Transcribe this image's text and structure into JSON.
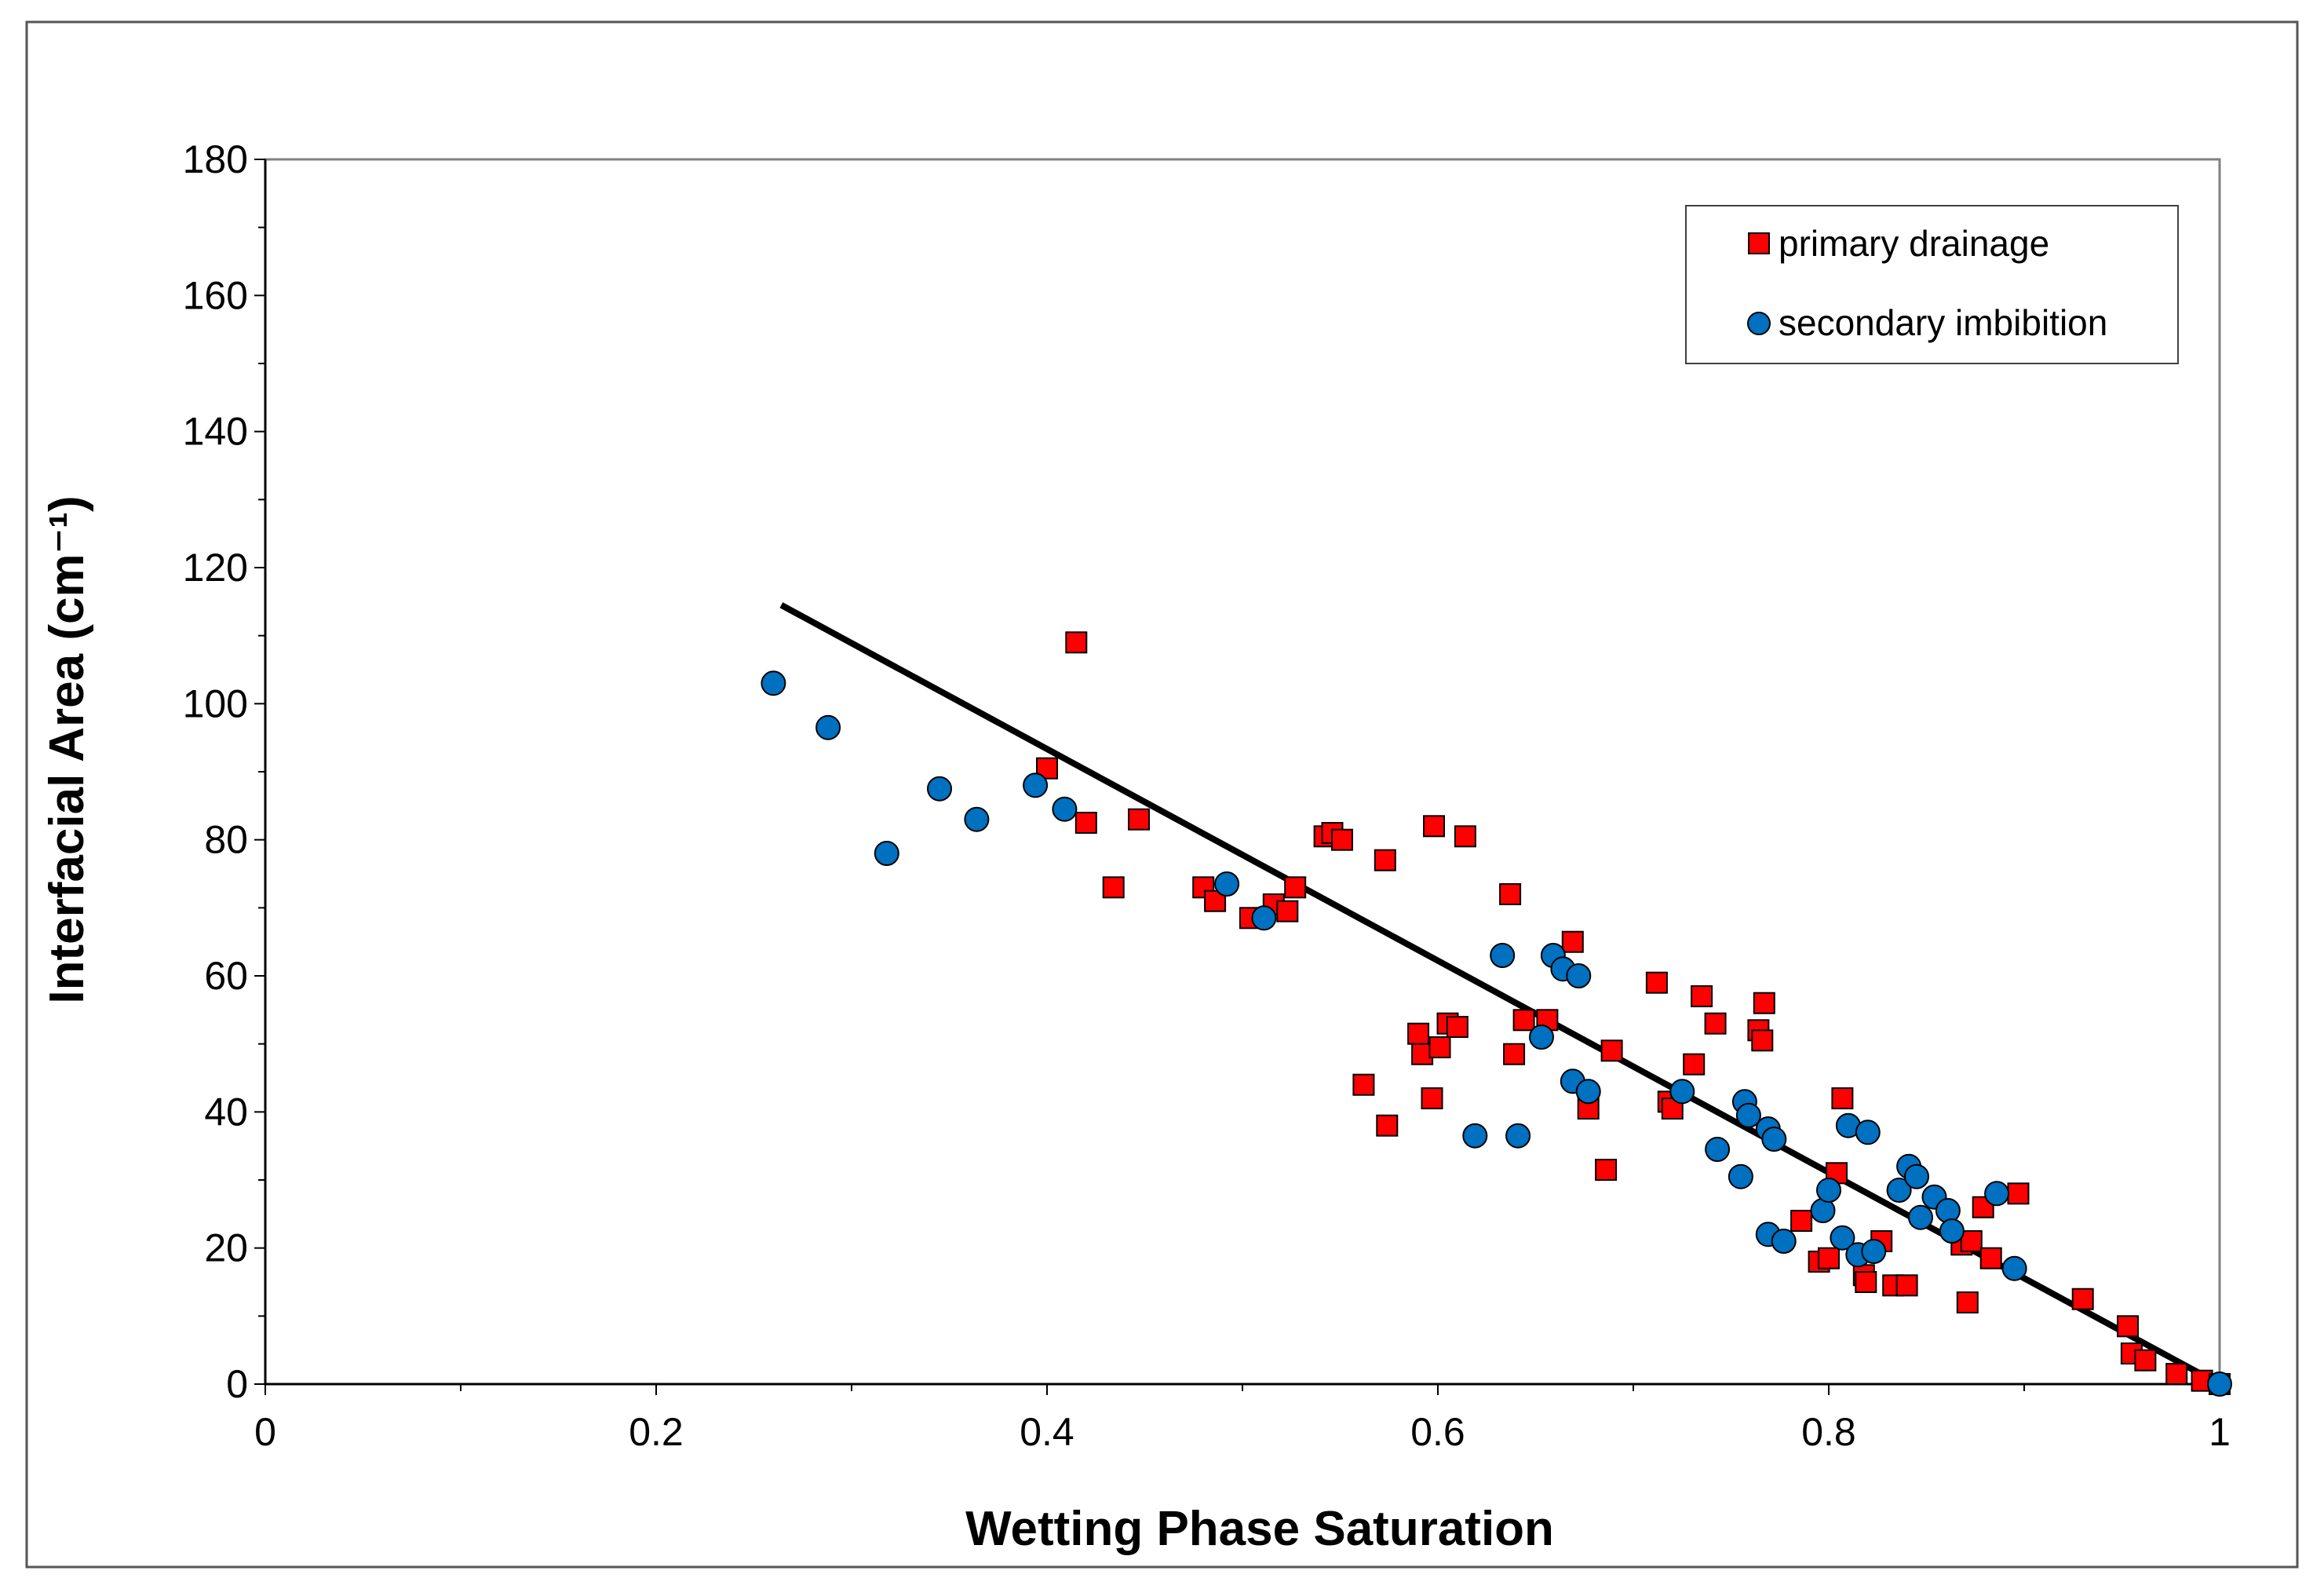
{
  "chart_data": {
    "type": "scatter",
    "xlabel": "Wetting Phase Saturation",
    "ylabel": "Interfacial Area (cm⁻¹)",
    "xlim": [
      0,
      1
    ],
    "ylim": [
      0,
      180
    ],
    "xticks": [
      "0",
      "0.2",
      "0.4",
      "0.6",
      "0.8",
      "1"
    ],
    "yticks": [
      "0",
      "20",
      "40",
      "60",
      "80",
      "100",
      "120",
      "140",
      "160",
      "180"
    ],
    "grid": false,
    "legend_position": "top-right",
    "series": [
      {
        "name": "primary drainage",
        "marker": "square",
        "color": "#ff0000",
        "points": [
          [
            0.415,
            109
          ],
          [
            0.4,
            90.5
          ],
          [
            0.42,
            82.5
          ],
          [
            0.447,
            83
          ],
          [
            0.434,
            73
          ],
          [
            0.48,
            73
          ],
          [
            0.486,
            71
          ],
          [
            0.504,
            68.5
          ],
          [
            0.516,
            70.5
          ],
          [
            0.523,
            69.5
          ],
          [
            0.527,
            73
          ],
          [
            0.542,
            80.5
          ],
          [
            0.546,
            81
          ],
          [
            0.551,
            80
          ],
          [
            0.573,
            77
          ],
          [
            0.598,
            82
          ],
          [
            0.614,
            80.5
          ],
          [
            0.637,
            72
          ],
          [
            0.669,
            65
          ],
          [
            0.562,
            44
          ],
          [
            0.574,
            38
          ],
          [
            0.59,
            51.5
          ],
          [
            0.592,
            48.5
          ],
          [
            0.597,
            42
          ],
          [
            0.601,
            49.5
          ],
          [
            0.605,
            53
          ],
          [
            0.61,
            52.5
          ],
          [
            0.639,
            48.5
          ],
          [
            0.644,
            53.5
          ],
          [
            0.656,
            53.5
          ],
          [
            0.677,
            40.5
          ],
          [
            0.686,
            31.5
          ],
          [
            0.689,
            49
          ],
          [
            0.712,
            59
          ],
          [
            0.718,
            41.5
          ],
          [
            0.72,
            40.5
          ],
          [
            0.731,
            47
          ],
          [
            0.735,
            57
          ],
          [
            0.742,
            53
          ],
          [
            0.764,
            52
          ],
          [
            0.766,
            50.5
          ],
          [
            0.767,
            56
          ],
          [
            0.786,
            24
          ],
          [
            0.795,
            18
          ],
          [
            0.8,
            18.5
          ],
          [
            0.804,
            31
          ],
          [
            0.807,
            42
          ],
          [
            0.818,
            16
          ],
          [
            0.819,
            15
          ],
          [
            0.827,
            21
          ],
          [
            0.833,
            14.5
          ],
          [
            0.84,
            14.5
          ],
          [
            0.868,
            20.5
          ],
          [
            0.871,
            12
          ],
          [
            0.873,
            21
          ],
          [
            0.879,
            26
          ],
          [
            0.883,
            18.5
          ],
          [
            0.897,
            28
          ],
          [
            0.93,
            12.5
          ],
          [
            0.953,
            8.5
          ],
          [
            0.955,
            4.5
          ],
          [
            0.962,
            3.5
          ],
          [
            0.978,
            1.5
          ],
          [
            0.991,
            0.5
          ],
          [
            1.0,
            0
          ]
        ]
      },
      {
        "name": "secondary imbibition",
        "marker": "circle",
        "color": "#0070c0",
        "points": [
          [
            0.26,
            103
          ],
          [
            0.288,
            96.5
          ],
          [
            0.318,
            78
          ],
          [
            0.345,
            87.5
          ],
          [
            0.364,
            83
          ],
          [
            0.394,
            88
          ],
          [
            0.409,
            84.5
          ],
          [
            0.492,
            73.5
          ],
          [
            0.511,
            68.5
          ],
          [
            0.633,
            63
          ],
          [
            0.659,
            63
          ],
          [
            0.664,
            61
          ],
          [
            0.672,
            60
          ],
          [
            0.653,
            51
          ],
          [
            0.619,
            36.5
          ],
          [
            0.641,
            36.5
          ],
          [
            0.669,
            44.5
          ],
          [
            0.677,
            43
          ],
          [
            0.725,
            43
          ],
          [
            0.743,
            34.5
          ],
          [
            0.755,
            30.5
          ],
          [
            0.757,
            41.5
          ],
          [
            0.759,
            39.5
          ],
          [
            0.769,
            37.5
          ],
          [
            0.772,
            36
          ],
          [
            0.769,
            22
          ],
          [
            0.777,
            21
          ],
          [
            0.797,
            25.5
          ],
          [
            0.8,
            28.5
          ],
          [
            0.807,
            21.5
          ],
          [
            0.81,
            38
          ],
          [
            0.815,
            19
          ],
          [
            0.82,
            37
          ],
          [
            0.823,
            19.5
          ],
          [
            0.836,
            28.5
          ],
          [
            0.841,
            32
          ],
          [
            0.845,
            30.5
          ],
          [
            0.847,
            24.5
          ],
          [
            0.854,
            27.5
          ],
          [
            0.861,
            25.5
          ],
          [
            0.863,
            22.5
          ],
          [
            0.886,
            28
          ],
          [
            0.895,
            17
          ],
          [
            1.0,
            0
          ]
        ]
      },
      {
        "name": "",
        "type": "line",
        "color": "#000000",
        "points": [
          [
            0.264,
            114.5
          ],
          [
            1.0,
            0
          ]
        ]
      }
    ]
  }
}
